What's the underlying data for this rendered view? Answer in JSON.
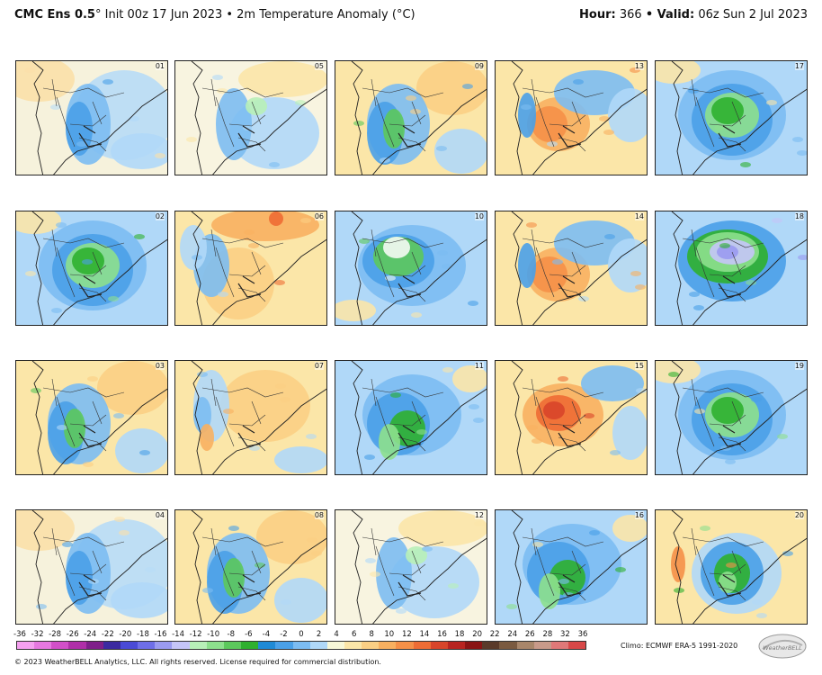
{
  "header": {
    "model": "CMC Ens 0.5",
    "init": "° Init 00z 17 Jun 2023 • 2m Temperature Anomaly (°C)",
    "hour_label": "Hour:",
    "hour_value": "366",
    "valid_label": "• Valid:",
    "valid_value": "06z Sun 2 Jul 2023"
  },
  "panels": [
    {
      "label": "01",
      "theme": "blue-south"
    },
    {
      "label": "05",
      "theme": "mixed-light"
    },
    {
      "label": "09",
      "theme": "blue-center"
    },
    {
      "label": "13",
      "theme": "warm-center"
    },
    {
      "label": "17",
      "theme": "green-wide"
    },
    {
      "label": "02",
      "theme": "green-wide"
    },
    {
      "label": "06",
      "theme": "warm-north"
    },
    {
      "label": "10",
      "theme": "white-center"
    },
    {
      "label": "14",
      "theme": "warm-center"
    },
    {
      "label": "18",
      "theme": "purple-center"
    },
    {
      "label": "03",
      "theme": "blue-center"
    },
    {
      "label": "07",
      "theme": "warm-light"
    },
    {
      "label": "11",
      "theme": "green-south"
    },
    {
      "label": "15",
      "theme": "red-center"
    },
    {
      "label": "19",
      "theme": "green-wide"
    },
    {
      "label": "04",
      "theme": "blue-south"
    },
    {
      "label": "08",
      "theme": "blue-center"
    },
    {
      "label": "12",
      "theme": "mixed-light"
    },
    {
      "label": "16",
      "theme": "green-south"
    },
    {
      "label": "20",
      "theme": "green-center"
    }
  ],
  "colorbar": {
    "labels": [
      "-36",
      "-32",
      "-28",
      "-26",
      "-24",
      "-22",
      "-20",
      "-18",
      "-16",
      "-14",
      "-12",
      "-10",
      "-8",
      "-6",
      "-4",
      "-2",
      "0",
      "2",
      "4",
      "6",
      "8",
      "10",
      "12",
      "14",
      "16",
      "18",
      "20",
      "22",
      "24",
      "26",
      "28",
      "32",
      "36"
    ],
    "colors": [
      "#f5a0f0",
      "#e678e0",
      "#d24fc8",
      "#b02fa8",
      "#7f1f8a",
      "#3b2aa0",
      "#4a4ad6",
      "#6e6ee8",
      "#9a9af0",
      "#c5c5f8",
      "#b8f0b8",
      "#8de08d",
      "#5cc85c",
      "#2fb02f",
      "#1f8ad6",
      "#4aa0e8",
      "#7cbcf2",
      "#b0d8f8",
      "#f8f8d8",
      "#fbe6a8",
      "#fbcf84",
      "#f8b060",
      "#f59048",
      "#ee6c34",
      "#d8452a",
      "#b82420",
      "#8a1414",
      "#5a3a2a",
      "#7a5a40",
      "#a8866a",
      "#c89a8a",
      "#e07878",
      "#d84848"
    ]
  },
  "climo": "Climo: ECMWF ERA-5 1991-2020",
  "copyright": "© 2023 WeatherBELL Analytics, LLC. All rights reserved. License required for commercial distribution.",
  "logo_text": "WeatherBELL"
}
